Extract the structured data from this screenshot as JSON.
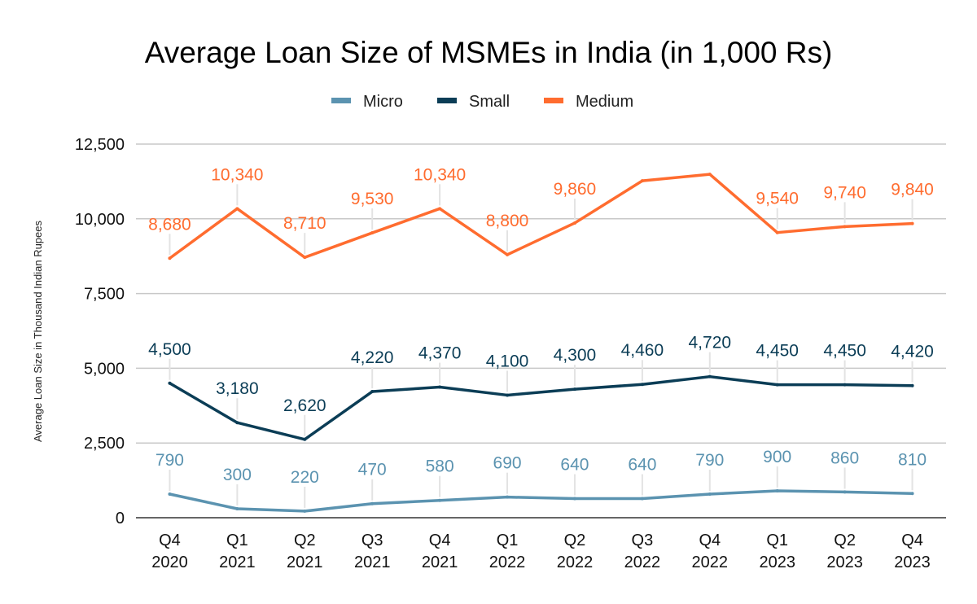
{
  "chart_data": {
    "type": "line",
    "title": "Average Loan Size of MSMEs in India (in 1,000 Rs)",
    "xlabel": "",
    "ylabel": "Average Loan Size in Thousand Indian Rupees",
    "ylim": [
      0,
      12500
    ],
    "yticks": [
      0,
      2500,
      5000,
      7500,
      10000,
      12500
    ],
    "ytick_labels": [
      "0",
      "2,500",
      "5,000",
      "7,500",
      "10,000",
      "12,500"
    ],
    "grid": true,
    "legend_position": "top-center",
    "categories": [
      [
        "Q4",
        "2020"
      ],
      [
        "Q1",
        "2021"
      ],
      [
        "Q2",
        "2021"
      ],
      [
        "Q3",
        "2021"
      ],
      [
        "Q4",
        "2021"
      ],
      [
        "Q1",
        "2022"
      ],
      [
        "Q2",
        "2022"
      ],
      [
        "Q3",
        "2022"
      ],
      [
        "Q4",
        "2022"
      ],
      [
        "Q1",
        "2023"
      ],
      [
        "Q2",
        "2023"
      ],
      [
        "Q4",
        "2023"
      ]
    ],
    "series": [
      {
        "name": "Micro",
        "color": "#5b93b0",
        "values": [
          790,
          300,
          220,
          470,
          580,
          690,
          640,
          640,
          790,
          900,
          860,
          810
        ],
        "labels": [
          "790",
          "300",
          "220",
          "470",
          "580",
          "690",
          "640",
          "640",
          "790",
          "900",
          "860",
          "810"
        ]
      },
      {
        "name": "Small",
        "color": "#0b3d56",
        "values": [
          4500,
          3180,
          2620,
          4220,
          4370,
          4100,
          4300,
          4460,
          4720,
          4450,
          4450,
          4420
        ],
        "labels": [
          "4,500",
          "3,180",
          "2,620",
          "4,220",
          "4,370",
          "4,100",
          "4,300",
          "4,460",
          "4,720",
          "4,450",
          "4,450",
          "4,420"
        ]
      },
      {
        "name": "Medium",
        "color": "#ff6c2f",
        "values": [
          8680,
          10340,
          8710,
          9530,
          10340,
          8800,
          9860,
          11270,
          11490,
          9540,
          9740,
          9840
        ],
        "labels": [
          "8,680",
          "10,340",
          "8,710",
          "9,530",
          "10,340",
          "8,800",
          "9,860",
          null,
          null,
          "9,540",
          "9,740",
          "9,840"
        ]
      }
    ]
  }
}
